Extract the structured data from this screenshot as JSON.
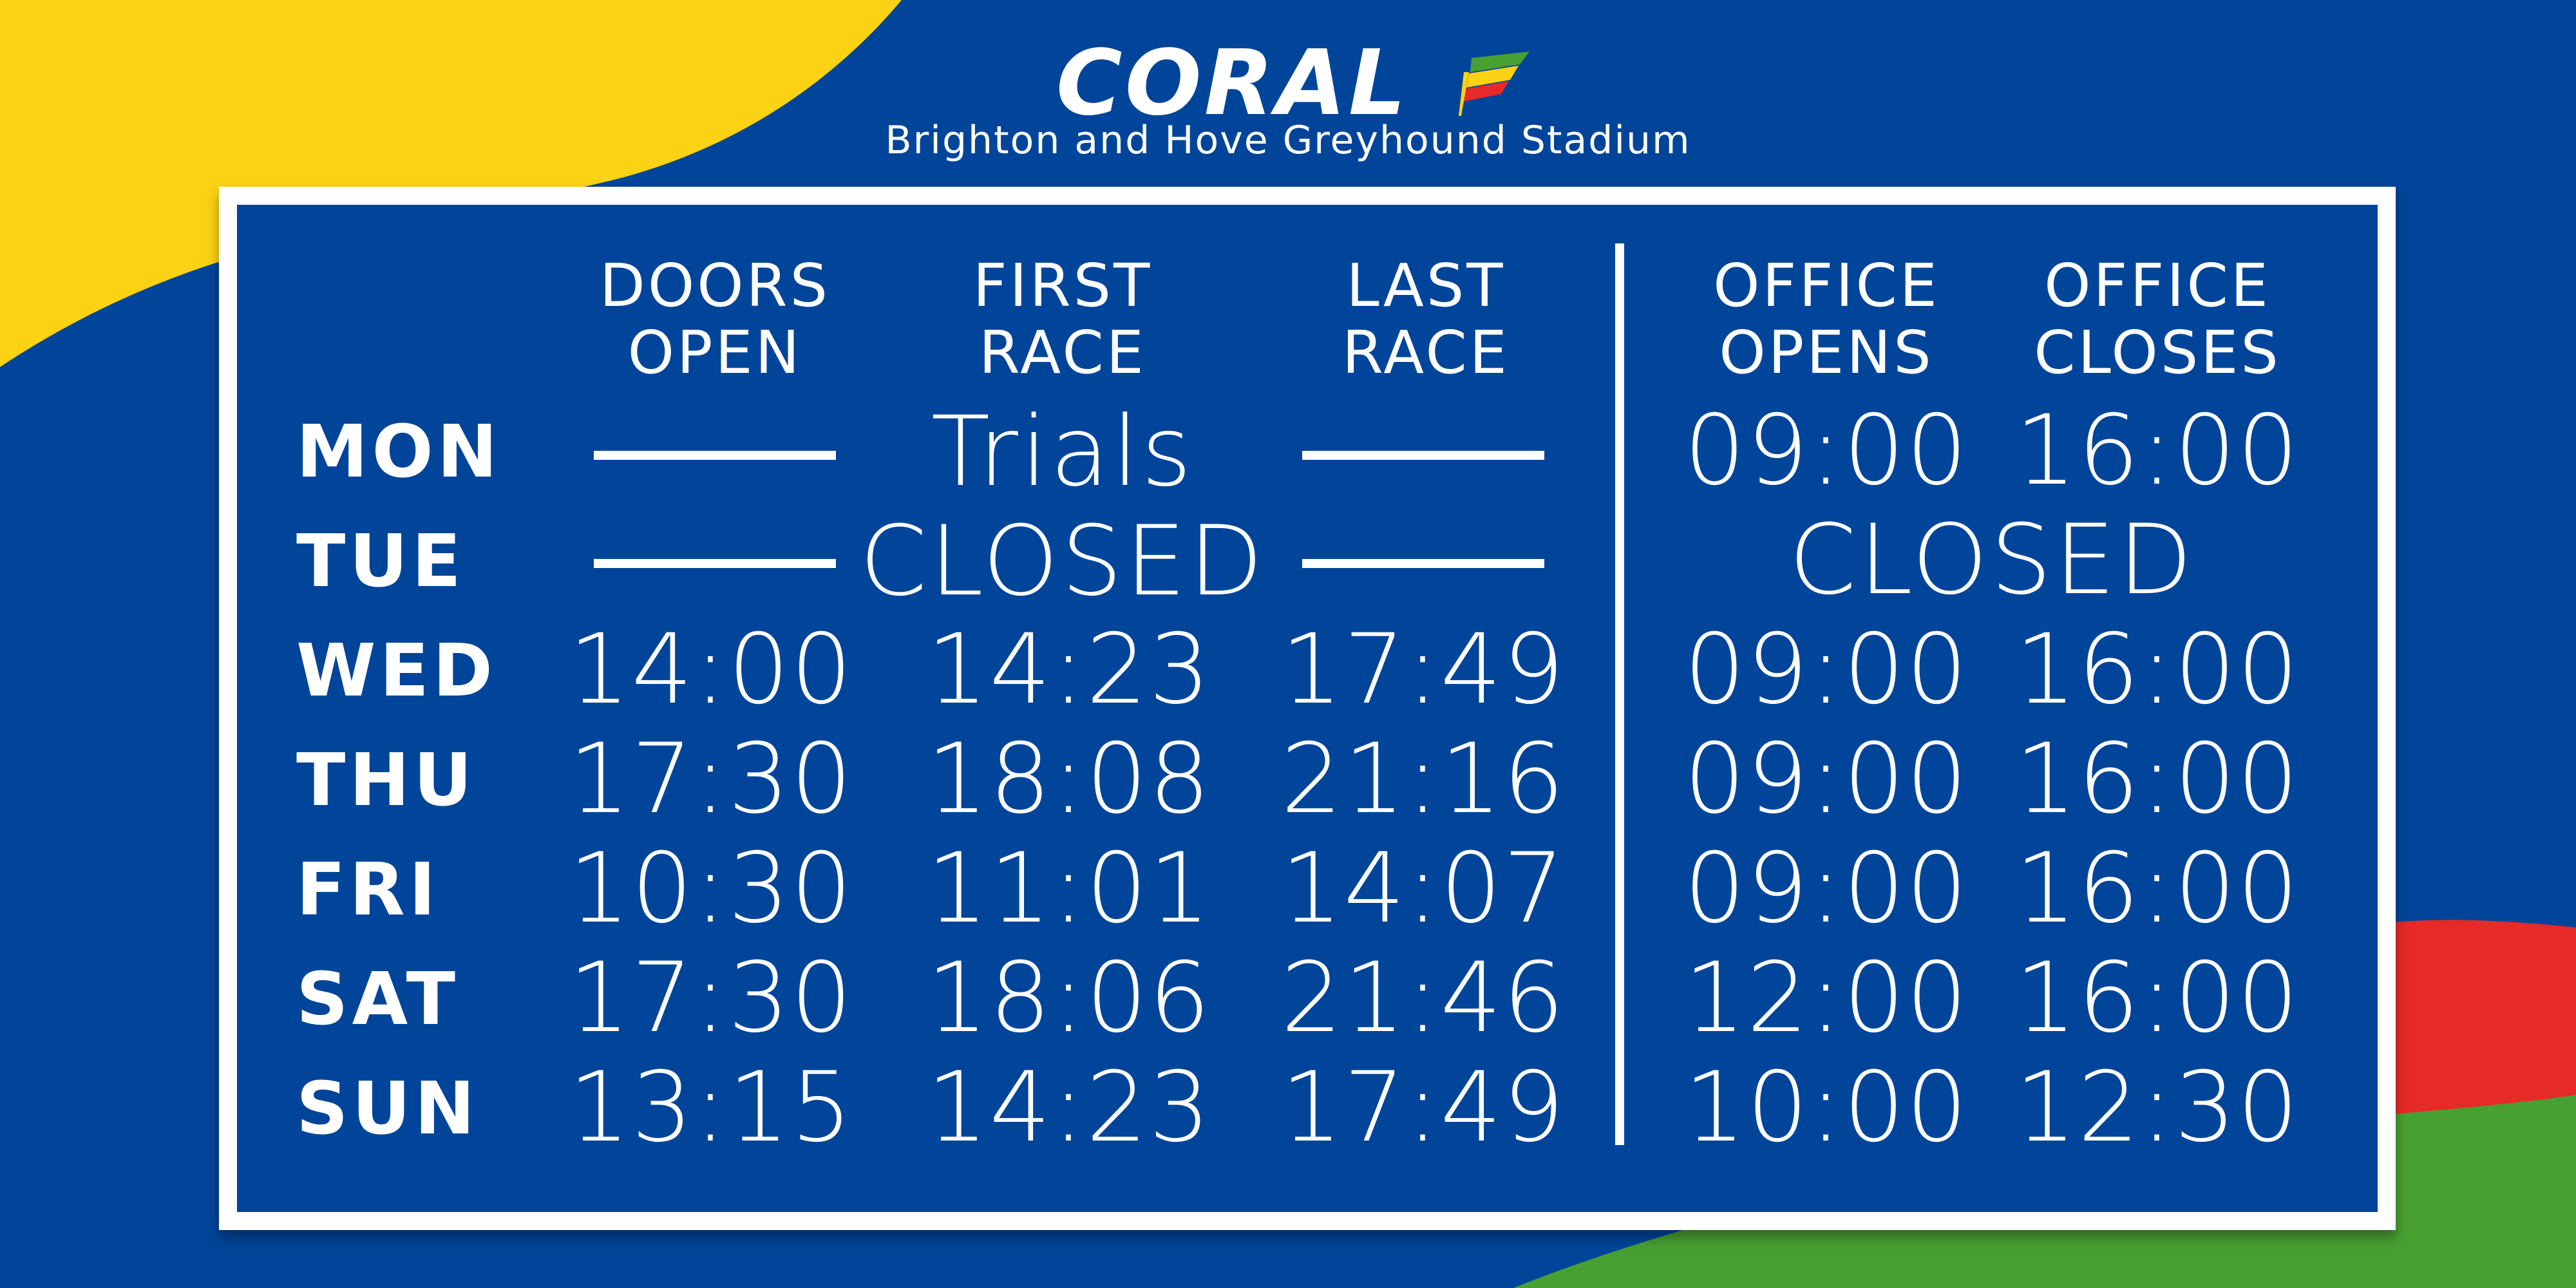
{
  "header": {
    "brand": "CORAL",
    "subtitle": "Brighton and Hove Greyhound Stadium"
  },
  "colors": {
    "background": "#01459a",
    "yellow": "#fcd215",
    "red": "#e52a28",
    "green": "#48a032",
    "text": "#ffffff"
  },
  "columns": {
    "doors_open": "DOORS\nOPEN",
    "first_race": "FIRST\nRACE",
    "last_race": "LAST\nRACE",
    "office_opens": "OFFICE\nOPENS",
    "office_closes": "OFFICE\nCLOSES"
  },
  "rows": [
    {
      "day": "MON",
      "race_note": "Trials",
      "office_opens": "09:00",
      "office_closes": "16:00"
    },
    {
      "day": "TUE",
      "race_note": "CLOSED",
      "office_note": "CLOSED"
    },
    {
      "day": "WED",
      "doors_open": "14:00",
      "first_race": "14:23",
      "last_race": "17:49",
      "office_opens": "09:00",
      "office_closes": "16:00"
    },
    {
      "day": "THU",
      "doors_open": "17:30",
      "first_race": "18:08",
      "last_race": "21:16",
      "office_opens": "09:00",
      "office_closes": "16:00"
    },
    {
      "day": "FRI",
      "doors_open": "10:30",
      "first_race": "11:01",
      "last_race": "14:07",
      "office_opens": "09:00",
      "office_closes": "16:00"
    },
    {
      "day": "SAT",
      "doors_open": "17:30",
      "first_race": "18:06",
      "last_race": "21:46",
      "office_opens": "12:00",
      "office_closes": "16:00"
    },
    {
      "day": "SUN",
      "doors_open": "13:15",
      "first_race": "14:23",
      "last_race": "17:49",
      "office_opens": "10:00",
      "office_closes": "12:30"
    }
  ]
}
